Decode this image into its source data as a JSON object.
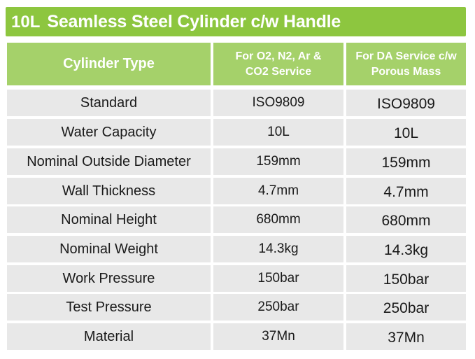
{
  "title": {
    "capacity": "10L",
    "name": "Seamless Steel Cylinder c/w Handle"
  },
  "header": {
    "col1": "Cylinder Type",
    "col2_line1": "For O2, N2, Ar &",
    "col2_line2": "CO2 Service",
    "col3_line1": "For DA Service c/w",
    "col3_line2": "Porous Mass"
  },
  "rows": [
    {
      "label": "Standard",
      "gas": "ISO9809",
      "da": "ISO9809"
    },
    {
      "label": "Water Capacity",
      "gas": "10L",
      "da": "10L"
    },
    {
      "label": "Nominal Outside Diameter",
      "gas": "159mm",
      "da": "159mm"
    },
    {
      "label": "Wall Thickness",
      "gas": "4.7mm",
      "da": "4.7mm"
    },
    {
      "label": "Nominal Height",
      "gas": "680mm",
      "da": "680mm"
    },
    {
      "label": "Nominal Weight",
      "gas": "14.3kg",
      "da": "14.3kg"
    },
    {
      "label": "Work Pressure",
      "gas": "150bar",
      "da": "150bar"
    },
    {
      "label": "Test Pressure",
      "gas": "250bar",
      "da": "250bar"
    },
    {
      "label": "Material",
      "gas": "37Mn",
      "da": "37Mn"
    }
  ],
  "colors": {
    "title_bg": "#8dc63f",
    "header_bg": "#a5d16a",
    "row_bg": "#e8e8e8"
  }
}
